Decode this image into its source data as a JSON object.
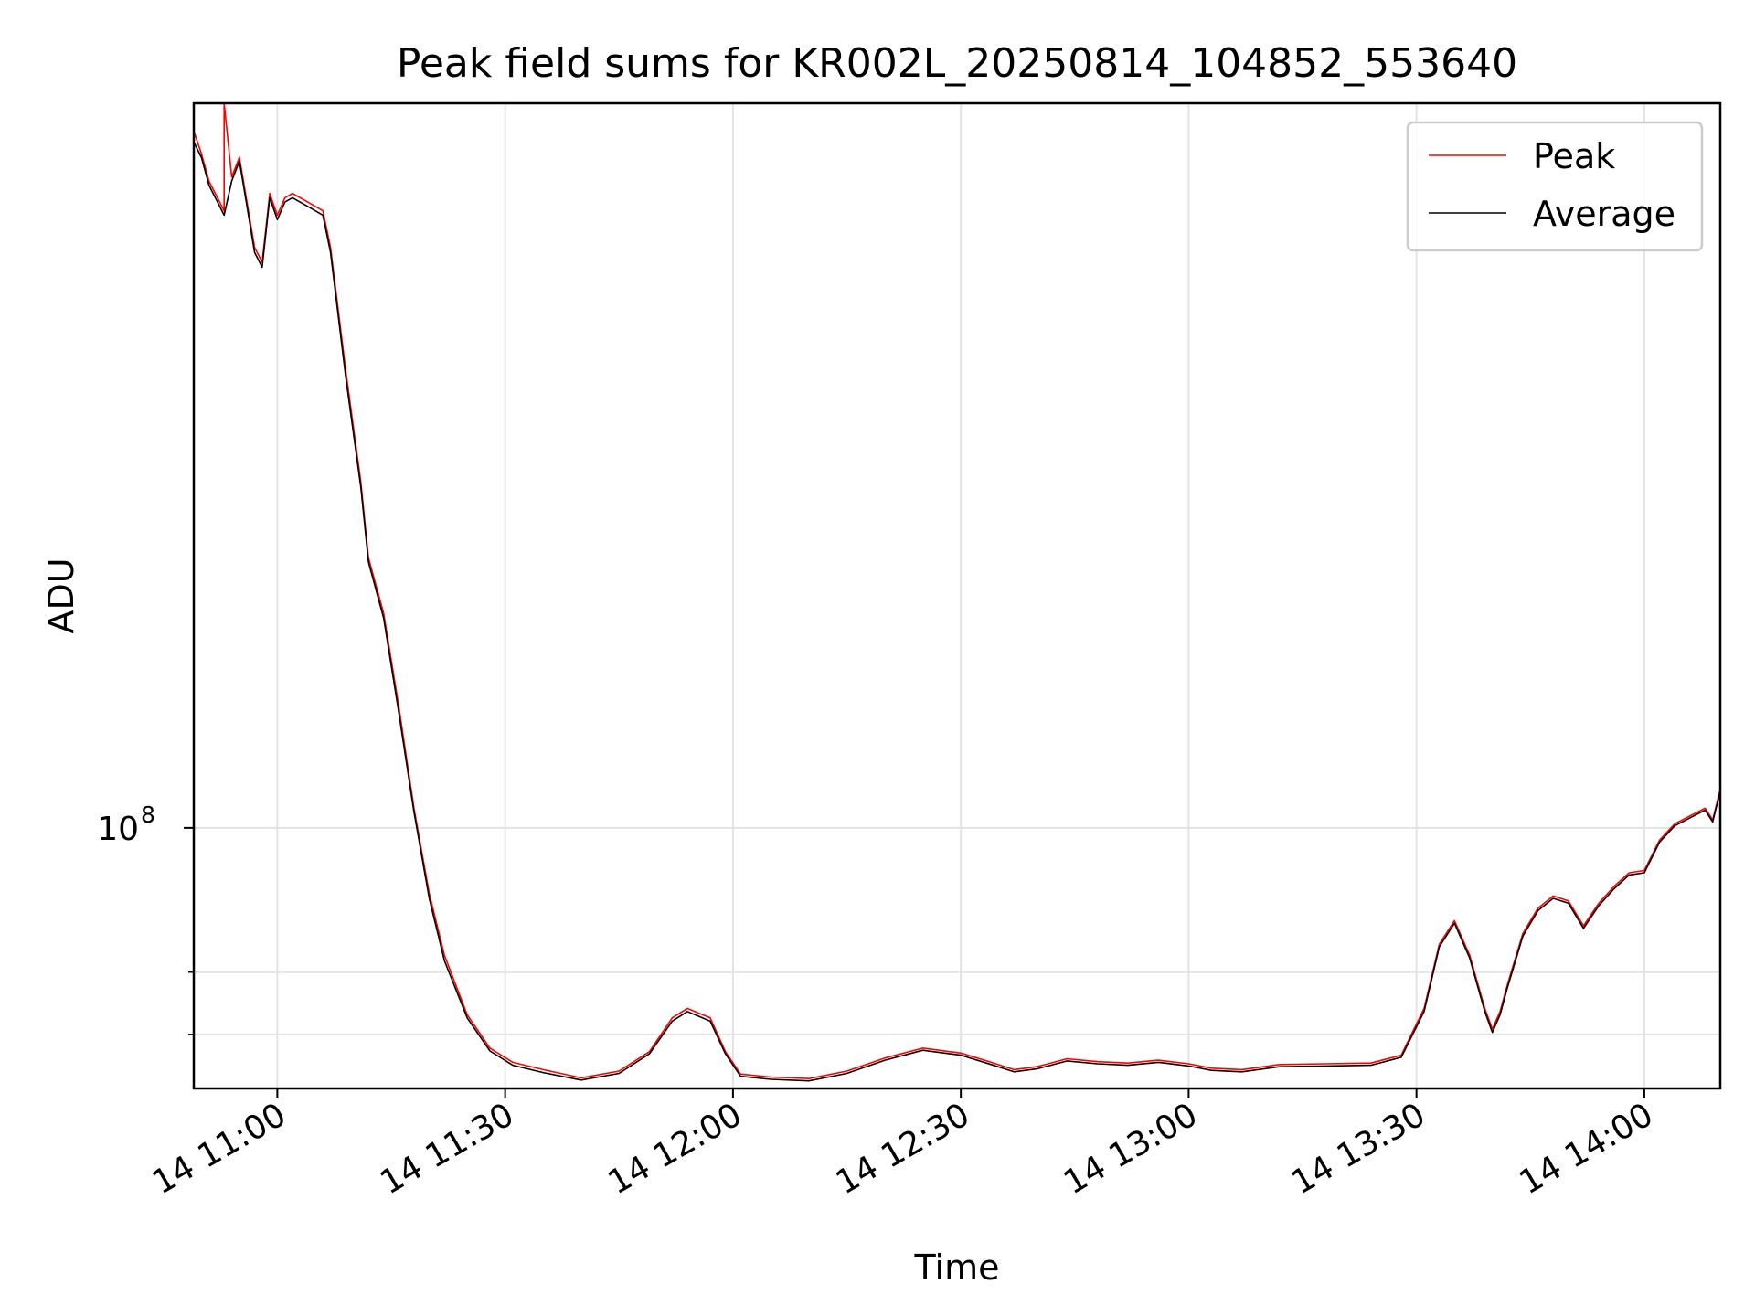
{
  "chart_data": {
    "type": "line",
    "title": "Peak field sums for KR002L_20250814_104852_553640",
    "xlabel": "Time",
    "ylabel": "ADU",
    "yscale": "log",
    "y_major_tick": {
      "base": "10",
      "exponent": "8",
      "value": 100000000
    },
    "y_minor_ticks": [
      60000000,
      70000000
    ],
    "ylim": [
      52500000,
      600000000
    ],
    "xlim": [
      "2025-08-14 10:49",
      "2025-08-14 14:10"
    ],
    "x_ticks": [
      "2025-08-14 11:00",
      "2025-08-14 11:30",
      "2025-08-14 12:00",
      "2025-08-14 12:30",
      "2025-08-14 13:00",
      "2025-08-14 13:30",
      "2025-08-14 14:00"
    ],
    "x_tick_labels": [
      "14 11:00",
      "14 11:30",
      "14 12:00",
      "14 12:30",
      "14 13:00",
      "14 13:30",
      "14 14:00"
    ],
    "grid": true,
    "legend_position": "top-right",
    "series": [
      {
        "name": "Peak",
        "color": "#ff0000",
        "points": [
          [
            "2025-08-14 10:49",
            560000000
          ],
          [
            "2025-08-14 10:50",
            530000000
          ],
          [
            "2025-08-14 10:51",
            495000000
          ],
          [
            "2025-08-14 10:53",
            460000000
          ],
          [
            "2025-08-14 10:53",
            600000000
          ],
          [
            "2025-08-14 10:54",
            500000000
          ],
          [
            "2025-08-14 10:55",
            525000000
          ],
          [
            "2025-08-14 10:56",
            470000000
          ],
          [
            "2025-08-14 10:57",
            420000000
          ],
          [
            "2025-08-14 10:58",
            405000000
          ],
          [
            "2025-08-14 10:59",
            480000000
          ],
          [
            "2025-08-14 11:00",
            455000000
          ],
          [
            "2025-08-14 11:01",
            475000000
          ],
          [
            "2025-08-14 11:02",
            480000000
          ],
          [
            "2025-08-14 11:04",
            470000000
          ],
          [
            "2025-08-14 11:06",
            460000000
          ],
          [
            "2025-08-14 11:07",
            420000000
          ],
          [
            "2025-08-14 11:09",
            310000000
          ],
          [
            "2025-08-14 11:11",
            235000000
          ],
          [
            "2025-08-14 11:12",
            195000000
          ],
          [
            "2025-08-14 11:14",
            170000000
          ],
          [
            "2025-08-14 11:16",
            135000000
          ],
          [
            "2025-08-14 11:18",
            105000000
          ],
          [
            "2025-08-14 11:20",
            85000000
          ],
          [
            "2025-08-14 11:22",
            73000000
          ],
          [
            "2025-08-14 11:25",
            63000000
          ],
          [
            "2025-08-14 11:28",
            58000000
          ],
          [
            "2025-08-14 11:31",
            56000000
          ],
          [
            "2025-08-14 11:35",
            55000000
          ],
          [
            "2025-08-14 11:40",
            53900000
          ],
          [
            "2025-08-14 11:45",
            54800000
          ],
          [
            "2025-08-14 11:49",
            57500000
          ],
          [
            "2025-08-14 11:52",
            62500000
          ],
          [
            "2025-08-14 11:54",
            64000000
          ],
          [
            "2025-08-14 11:57",
            62500000
          ],
          [
            "2025-08-14 11:59",
            57500000
          ],
          [
            "2025-08-14 12:01",
            54400000
          ],
          [
            "2025-08-14 12:05",
            54000000
          ],
          [
            "2025-08-14 12:10",
            53800000
          ],
          [
            "2025-08-14 12:15",
            54800000
          ],
          [
            "2025-08-14 12:20",
            56600000
          ],
          [
            "2025-08-14 12:25",
            58000000
          ],
          [
            "2025-08-14 12:30",
            57300000
          ],
          [
            "2025-08-14 12:34",
            56000000
          ],
          [
            "2025-08-14 12:37",
            55000000
          ],
          [
            "2025-08-14 12:40",
            55400000
          ],
          [
            "2025-08-14 12:44",
            56500000
          ],
          [
            "2025-08-14 12:48",
            56100000
          ],
          [
            "2025-08-14 12:52",
            55900000
          ],
          [
            "2025-08-14 12:56",
            56300000
          ],
          [
            "2025-08-14 13:00",
            55800000
          ],
          [
            "2025-08-14 13:03",
            55200000
          ],
          [
            "2025-08-14 13:07",
            55000000
          ],
          [
            "2025-08-14 13:12",
            55700000
          ],
          [
            "2025-08-14 13:18",
            55800000
          ],
          [
            "2025-08-14 13:24",
            55900000
          ],
          [
            "2025-08-14 13:28",
            57000000
          ],
          [
            "2025-08-14 13:31",
            64000000
          ],
          [
            "2025-08-14 13:33",
            75000000
          ],
          [
            "2025-08-14 13:35",
            79500000
          ],
          [
            "2025-08-14 13:37",
            73000000
          ],
          [
            "2025-08-14 13:39",
            64000000
          ],
          [
            "2025-08-14 13:40",
            60800000
          ],
          [
            "2025-08-14 13:41",
            63500000
          ],
          [
            "2025-08-14 13:42",
            68000000
          ],
          [
            "2025-08-14 13:44",
            77000000
          ],
          [
            "2025-08-14 13:46",
            82000000
          ],
          [
            "2025-08-14 13:48",
            84500000
          ],
          [
            "2025-08-14 13:50",
            83500000
          ],
          [
            "2025-08-14 13:52",
            78500000
          ],
          [
            "2025-08-14 13:54",
            83000000
          ],
          [
            "2025-08-14 13:56",
            86500000
          ],
          [
            "2025-08-14 13:58",
            89500000
          ],
          [
            "2025-08-14 14:00",
            90000000
          ],
          [
            "2025-08-14 14:02",
            97000000
          ],
          [
            "2025-08-14 14:04",
            101000000
          ],
          [
            "2025-08-14 14:06",
            103000000
          ],
          [
            "2025-08-14 14:08",
            105000000
          ],
          [
            "2025-08-14 14:09",
            102000000
          ],
          [
            "2025-08-14 14:10",
            110000000
          ]
        ]
      },
      {
        "name": "Average",
        "color": "#000000",
        "points": [
          [
            "2025-08-14 10:49",
            545000000
          ],
          [
            "2025-08-14 10:50",
            525000000
          ],
          [
            "2025-08-14 10:51",
            490000000
          ],
          [
            "2025-08-14 10:53",
            455000000
          ],
          [
            "2025-08-14 10:54",
            495000000
          ],
          [
            "2025-08-14 10:55",
            520000000
          ],
          [
            "2025-08-14 10:56",
            465000000
          ],
          [
            "2025-08-14 10:57",
            415000000
          ],
          [
            "2025-08-14 10:58",
            400000000
          ],
          [
            "2025-08-14 10:59",
            475000000
          ],
          [
            "2025-08-14 11:00",
            450000000
          ],
          [
            "2025-08-14 11:01",
            470000000
          ],
          [
            "2025-08-14 11:02",
            475000000
          ],
          [
            "2025-08-14 11:04",
            465000000
          ],
          [
            "2025-08-14 11:06",
            455000000
          ],
          [
            "2025-08-14 11:07",
            415000000
          ],
          [
            "2025-08-14 11:09",
            305000000
          ],
          [
            "2025-08-14 11:11",
            232000000
          ],
          [
            "2025-08-14 11:12",
            193000000
          ],
          [
            "2025-08-14 11:14",
            168000000
          ],
          [
            "2025-08-14 11:16",
            133000000
          ],
          [
            "2025-08-14 11:18",
            104000000
          ],
          [
            "2025-08-14 11:20",
            84000000
          ],
          [
            "2025-08-14 11:22",
            72000000
          ],
          [
            "2025-08-14 11:25",
            62500000
          ],
          [
            "2025-08-14 11:28",
            57600000
          ],
          [
            "2025-08-14 11:31",
            55600000
          ],
          [
            "2025-08-14 11:35",
            54600000
          ],
          [
            "2025-08-14 11:40",
            53600000
          ],
          [
            "2025-08-14 11:45",
            54500000
          ],
          [
            "2025-08-14 11:49",
            57200000
          ],
          [
            "2025-08-14 11:52",
            62000000
          ],
          [
            "2025-08-14 11:54",
            63500000
          ],
          [
            "2025-08-14 11:57",
            62000000
          ],
          [
            "2025-08-14 11:59",
            57200000
          ],
          [
            "2025-08-14 12:01",
            54100000
          ],
          [
            "2025-08-14 12:05",
            53700000
          ],
          [
            "2025-08-14 12:10",
            53500000
          ],
          [
            "2025-08-14 12:15",
            54500000
          ],
          [
            "2025-08-14 12:20",
            56300000
          ],
          [
            "2025-08-14 12:25",
            57700000
          ],
          [
            "2025-08-14 12:30",
            57000000
          ],
          [
            "2025-08-14 12:34",
            55700000
          ],
          [
            "2025-08-14 12:37",
            54700000
          ],
          [
            "2025-08-14 12:40",
            55100000
          ],
          [
            "2025-08-14 12:44",
            56200000
          ],
          [
            "2025-08-14 12:48",
            55800000
          ],
          [
            "2025-08-14 12:52",
            55600000
          ],
          [
            "2025-08-14 12:56",
            56000000
          ],
          [
            "2025-08-14 13:00",
            55500000
          ],
          [
            "2025-08-14 13:03",
            54900000
          ],
          [
            "2025-08-14 13:07",
            54700000
          ],
          [
            "2025-08-14 13:12",
            55400000
          ],
          [
            "2025-08-14 13:18",
            55500000
          ],
          [
            "2025-08-14 13:24",
            55600000
          ],
          [
            "2025-08-14 13:28",
            56700000
          ],
          [
            "2025-08-14 13:31",
            63500000
          ],
          [
            "2025-08-14 13:33",
            74500000
          ],
          [
            "2025-08-14 13:35",
            79000000
          ],
          [
            "2025-08-14 13:37",
            72500000
          ],
          [
            "2025-08-14 13:39",
            63500000
          ],
          [
            "2025-08-14 13:40",
            60300000
          ],
          [
            "2025-08-14 13:41",
            63000000
          ],
          [
            "2025-08-14 13:42",
            67500000
          ],
          [
            "2025-08-14 13:44",
            76500000
          ],
          [
            "2025-08-14 13:46",
            81500000
          ],
          [
            "2025-08-14 13:48",
            84000000
          ],
          [
            "2025-08-14 13:50",
            83000000
          ],
          [
            "2025-08-14 13:52",
            78000000
          ],
          [
            "2025-08-14 13:54",
            82500000
          ],
          [
            "2025-08-14 13:56",
            86000000
          ],
          [
            "2025-08-14 13:58",
            89000000
          ],
          [
            "2025-08-14 14:00",
            89500000
          ],
          [
            "2025-08-14 14:02",
            96500000
          ],
          [
            "2025-08-14 14:04",
            100500000
          ],
          [
            "2025-08-14 14:06",
            102500000
          ],
          [
            "2025-08-14 14:08",
            104500000
          ],
          [
            "2025-08-14 14:09",
            101500000
          ],
          [
            "2025-08-14 14:10",
            109500000
          ]
        ]
      }
    ]
  }
}
